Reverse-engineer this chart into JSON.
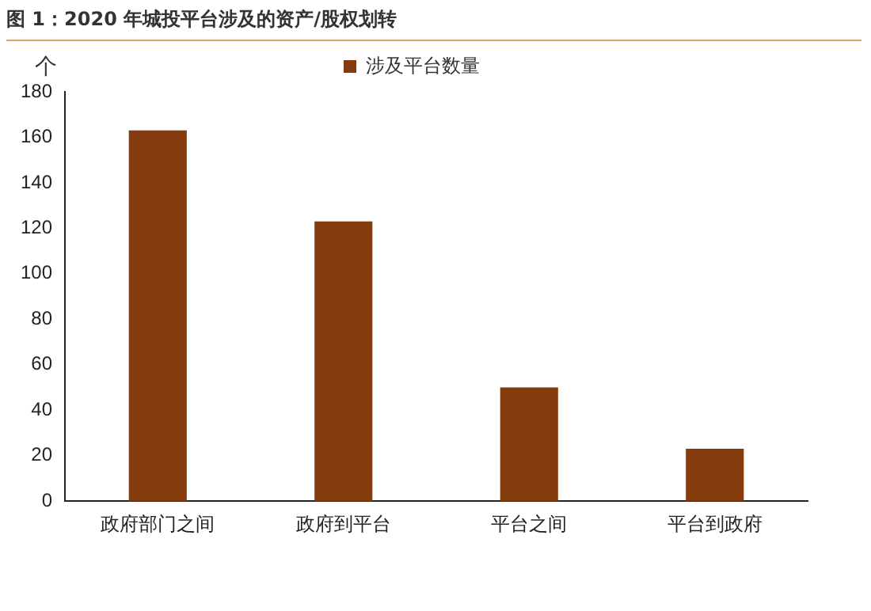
{
  "chart_data": {
    "type": "bar",
    "title": "图 1：2020 年城投平台涉及的资产/股权划转",
    "ylabel": "个",
    "categories": [
      "政府部门之间",
      "政府到平台",
      "平台之间",
      "平台到政府"
    ],
    "series": [
      {
        "name": "涉及平台数量",
        "color": "#843c0c",
        "values": [
          163,
          123,
          50,
          23
        ]
      }
    ],
    "ylim": [
      0,
      180
    ],
    "yticks": [
      0,
      20,
      40,
      60,
      80,
      100,
      120,
      140,
      160,
      180
    ],
    "grid": false,
    "legend": "top"
  }
}
